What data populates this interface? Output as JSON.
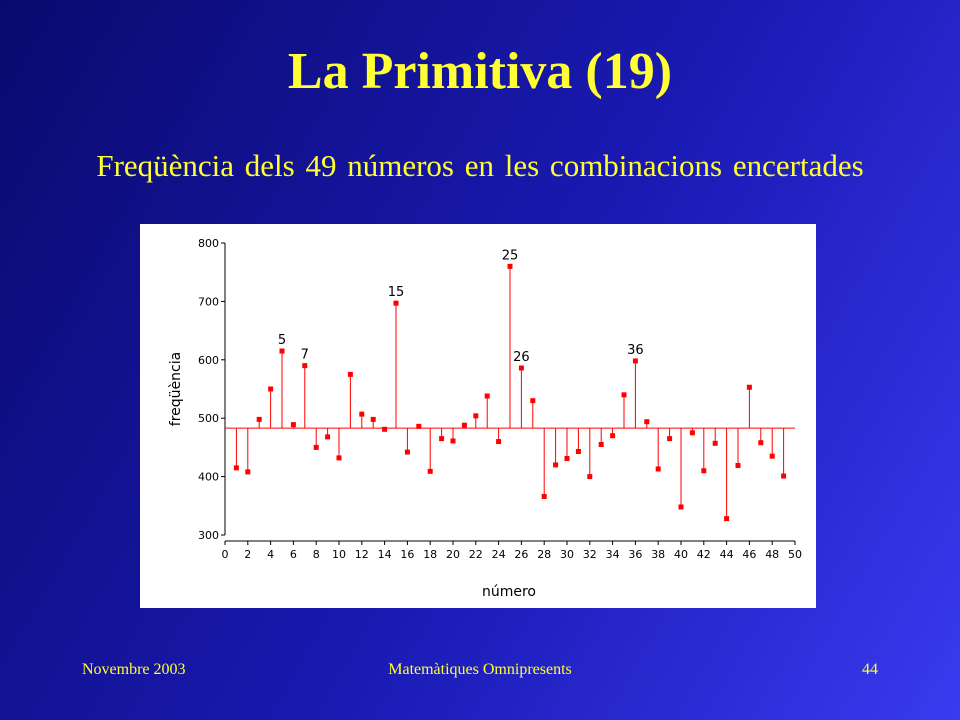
{
  "slide": {
    "title": "La Primitiva (19)",
    "subtitle": "Freqüència dels 49 números en les combinacions encertades",
    "footer_left": "Novembre 2003",
    "footer_center": "Matemàtiques Omnipresents",
    "footer_right": "44",
    "colors": {
      "background": "#1a1ab4",
      "text": "#ffff33",
      "chart_bg": "#ffffff",
      "mark": "#ff0000"
    }
  },
  "chart_data": {
    "type": "scatter",
    "style": "drop-lines from reference line",
    "xlabel": "número",
    "ylabel": "freqüència",
    "xlim": [
      0,
      50
    ],
    "ylim": [
      300,
      800
    ],
    "xticks": [
      0,
      2,
      4,
      6,
      8,
      10,
      12,
      14,
      16,
      18,
      20,
      22,
      24,
      26,
      28,
      30,
      32,
      34,
      36,
      38,
      40,
      42,
      44,
      46,
      48,
      50
    ],
    "yticks": [
      300,
      400,
      500,
      600,
      700,
      800
    ],
    "reference_y": 483,
    "grid": false,
    "x": [
      1,
      2,
      3,
      4,
      5,
      6,
      7,
      8,
      9,
      10,
      11,
      12,
      13,
      14,
      15,
      16,
      17,
      18,
      19,
      20,
      21,
      22,
      23,
      24,
      25,
      26,
      27,
      28,
      29,
      30,
      31,
      32,
      33,
      34,
      35,
      36,
      37,
      38,
      39,
      40,
      41,
      42,
      43,
      44,
      45,
      46,
      47,
      48,
      49
    ],
    "y": [
      415,
      408,
      498,
      550,
      615,
      489,
      590,
      450,
      468,
      432,
      575,
      507,
      498,
      481,
      697,
      442,
      486,
      409,
      465,
      461,
      488,
      504,
      538,
      460,
      760,
      586,
      530,
      366,
      420,
      431,
      443,
      400,
      455,
      470,
      540,
      598,
      494,
      413,
      465,
      348,
      475,
      410,
      457,
      328,
      419,
      553,
      458,
      435,
      401
    ],
    "annotations": [
      {
        "x": 5,
        "label": "5"
      },
      {
        "x": 7,
        "label": "7"
      },
      {
        "x": 15,
        "label": "15"
      },
      {
        "x": 25,
        "label": "25"
      },
      {
        "x": 26,
        "label": "26"
      },
      {
        "x": 36,
        "label": "36"
      }
    ]
  }
}
